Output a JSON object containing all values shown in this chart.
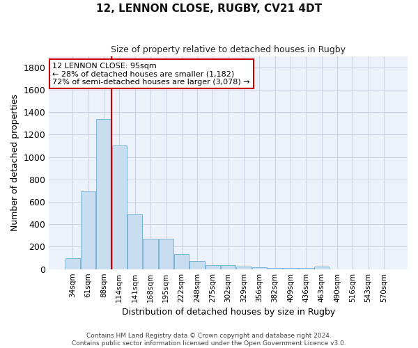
{
  "title": "12, LENNON CLOSE, RUGBY, CV21 4DT",
  "subtitle": "Size of property relative to detached houses in Rugby",
  "xlabel": "Distribution of detached houses by size in Rugby",
  "ylabel": "Number of detached properties",
  "categories": [
    "34sqm",
    "61sqm",
    "88sqm",
    "114sqm",
    "141sqm",
    "168sqm",
    "195sqm",
    "222sqm",
    "248sqm",
    "275sqm",
    "302sqm",
    "329sqm",
    "356sqm",
    "382sqm",
    "409sqm",
    "436sqm",
    "463sqm",
    "490sqm",
    "516sqm",
    "543sqm",
    "570sqm"
  ],
  "values": [
    100,
    695,
    1340,
    1100,
    490,
    270,
    270,
    135,
    75,
    35,
    35,
    25,
    15,
    8,
    8,
    8,
    20,
    0,
    0,
    0,
    0
  ],
  "bar_color": "#c9ddf0",
  "bar_edge_color": "#7ab4d8",
  "vline_x": 2.5,
  "annotation_title": "12 LENNON CLOSE: 95sqm",
  "annotation_line1": "← 28% of detached houses are smaller (1,182)",
  "annotation_line2": "72% of semi-detached houses are larger (3,078) →",
  "ylim": [
    0,
    1900
  ],
  "yticks": [
    0,
    200,
    400,
    600,
    800,
    1000,
    1200,
    1400,
    1600,
    1800
  ],
  "grid_color": "#cdd5e5",
  "background_color": "#edf1f9",
  "annotation_box_facecolor": "#ffffff",
  "annotation_box_edgecolor": "#cc0000",
  "vline_color": "#cc0000",
  "footer_line1": "Contains HM Land Registry data © Crown copyright and database right 2024.",
  "footer_line2": "Contains public sector information licensed under the Open Government Licence v3.0."
}
